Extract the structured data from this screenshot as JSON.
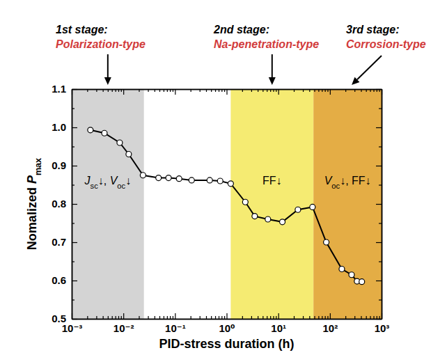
{
  "chart_data": {
    "type": "line",
    "x_label": "PID-stress duration (h)",
    "y_label": [
      "Nomalized ",
      "P",
      {
        "sub": "max"
      }
    ],
    "log": "x",
    "marker": "circle",
    "color": "#000000",
    "x": [
      0.0023,
      0.0043,
      0.0085,
      0.0127,
      0.024,
      0.048,
      0.075,
      0.12,
      0.21,
      0.47,
      0.75,
      1.2,
      2.3,
      3.5,
      6.3,
      12,
      24,
      46,
      85,
      170,
      263,
      335,
      415
    ],
    "values": [
      0.993,
      0.985,
      0.96,
      0.93,
      0.875,
      0.868,
      0.868,
      0.866,
      0.862,
      0.862,
      0.86,
      0.853,
      0.805,
      0.768,
      0.76,
      0.753,
      0.785,
      0.792,
      0.7,
      0.63,
      0.615,
      0.598,
      0.597
    ],
    "xlim": [
      0.001,
      1000
    ],
    "ylim": [
      0.5,
      1.1
    ],
    "xticks": [
      {
        "value": 0.001,
        "label": "10⁻³"
      },
      {
        "value": 0.01,
        "label": "10⁻²"
      },
      {
        "value": 0.1,
        "label": "10⁻¹"
      },
      {
        "value": 1,
        "label": "10⁰"
      },
      {
        "value": 10,
        "label": "10¹"
      },
      {
        "value": 100,
        "label": "10²"
      },
      {
        "value": 1000,
        "label": "10³"
      }
    ],
    "yticks": [
      0.5,
      0.6,
      0.7,
      0.8,
      0.9,
      {
        "value": 1,
        "label": "1.0"
      },
      1.1
    ],
    "xminor_ticks": [
      0.002,
      0.003,
      0.004,
      0.005,
      0.006,
      0.007,
      0.008,
      0.009,
      0.02,
      0.03,
      0.04,
      0.05,
      0.06,
      0.07,
      0.08,
      0.09,
      0.2,
      0.3,
      0.4,
      0.5,
      0.6,
      0.7,
      0.8,
      0.9,
      2,
      3,
      4,
      5,
      6,
      7,
      8,
      9,
      20,
      30,
      40,
      50,
      60,
      70,
      80,
      90,
      200,
      300,
      400,
      500,
      600,
      700,
      800,
      900
    ],
    "yminor_ticks": [
      0.55,
      0.65,
      0.75,
      0.85,
      0.95,
      1.05
    ],
    "regions": [
      {
        "xlim": [
          0.001,
          0.025
        ],
        "color": "#d4d4d4"
      },
      {
        "xlim": [
          1.2,
          48
        ],
        "color": "#f5eb72"
      },
      {
        "xlim": [
          48,
          1000
        ],
        "color": "#e4ad45"
      }
    ],
    "stages": [
      {
        "label": "1st stage:",
        "name": "Polarization-type"
      },
      {
        "label": "2nd stage:",
        "name": "Na-penetration-type"
      },
      {
        "label": "3rd stage:",
        "name": "Corrosion-type"
      }
    ],
    "annotations": [
      [
        "J",
        {
          "sub": "sc"
        },
        "↓, ",
        "V",
        {
          "sub": "oc"
        },
        "↓"
      ],
      [
        "FF↓"
      ],
      [
        "V",
        {
          "sub": "oc"
        },
        "↓, FF↓"
      ]
    ]
  }
}
